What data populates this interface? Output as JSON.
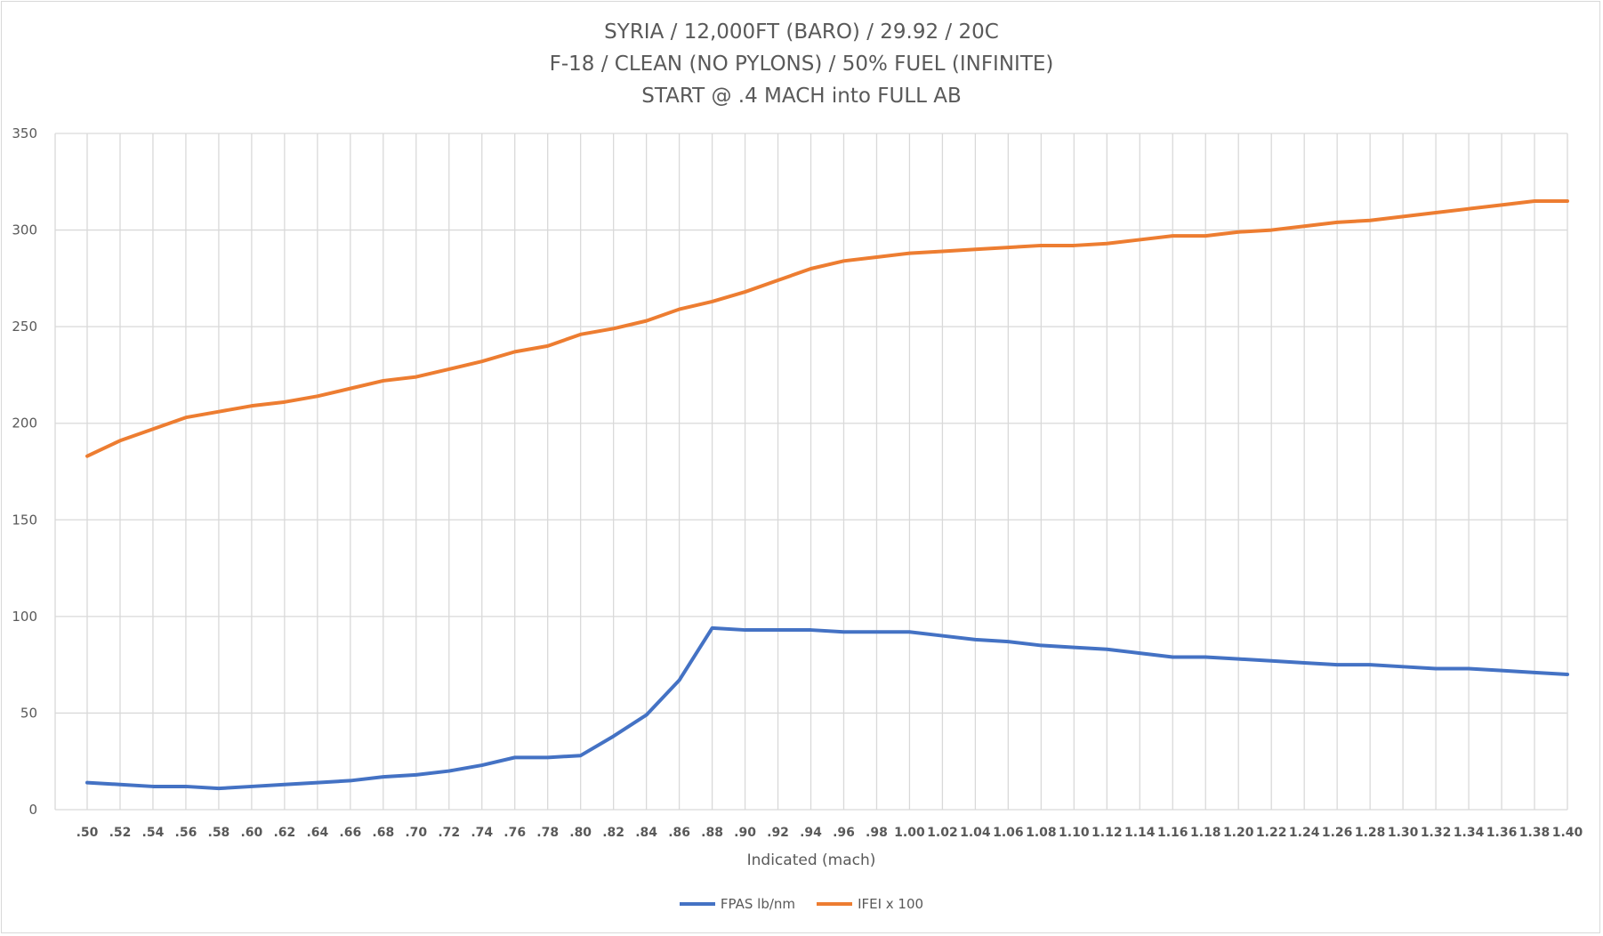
{
  "chart_data": {
    "type": "line",
    "title_lines": [
      "SYRIA / 12,000FT (BARO) / 29.92 / 20C",
      "F-18 / CLEAN (NO PYLONS) / 50% FUEL (INFINITE)",
      "START @ .4 MACH into FULL AB"
    ],
    "xlabel": "Indicated (mach)",
    "ylabel": "",
    "ylim": [
      0,
      350
    ],
    "yticks": [
      0,
      50,
      100,
      150,
      200,
      250,
      300,
      350
    ],
    "categories": [
      ".50",
      ".52",
      ".54",
      ".56",
      ".58",
      ".60",
      ".62",
      ".64",
      ".66",
      ".68",
      ".70",
      ".72",
      ".74",
      ".76",
      ".78",
      ".80",
      ".82",
      ".84",
      ".86",
      ".88",
      ".90",
      ".92",
      ".94",
      ".96",
      ".98",
      "1.00",
      "1.02",
      "1.04",
      "1.06",
      "1.08",
      "1.10",
      "1.12",
      "1.14",
      "1.16",
      "1.18",
      "1.20",
      "1.22",
      "1.24",
      "1.26",
      "1.28",
      "1.30",
      "1.32",
      "1.34",
      "1.36",
      "1.38",
      "1.40"
    ],
    "grid": true,
    "legend_position": "bottom",
    "series": [
      {
        "name": "FPAS lb/nm",
        "color": "#4472c4",
        "values": [
          14,
          13,
          12,
          12,
          11,
          12,
          13,
          14,
          15,
          17,
          18,
          20,
          23,
          27,
          27,
          28,
          38,
          49,
          67,
          94,
          93,
          93,
          93,
          92,
          92,
          92,
          90,
          88,
          87,
          85,
          84,
          83,
          81,
          79,
          79,
          78,
          77,
          76,
          75,
          75,
          74,
          73,
          73,
          72,
          71,
          70
        ]
      },
      {
        "name": "IFEI x 100",
        "color": "#ed7d31",
        "values": [
          183,
          191,
          197,
          203,
          206,
          209,
          211,
          214,
          218,
          222,
          224,
          228,
          232,
          237,
          240,
          246,
          249,
          253,
          259,
          263,
          268,
          274,
          280,
          284,
          286,
          288,
          289,
          290,
          291,
          292,
          292,
          293,
          295,
          297,
          297,
          299,
          300,
          302,
          304,
          305,
          307,
          309,
          311,
          313,
          315,
          315
        ]
      }
    ]
  }
}
